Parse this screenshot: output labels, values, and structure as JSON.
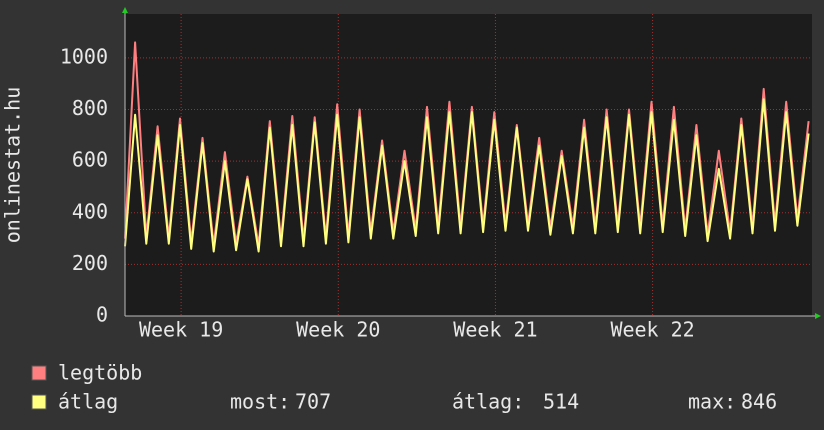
{
  "chart_data": {
    "type": "line",
    "side_label": "onlinestat.hu",
    "x": [
      0,
      0.45,
      0.95,
      1.45,
      1.95,
      2.45,
      2.95,
      3.45,
      3.95,
      4.45,
      4.95,
      5.45,
      5.95,
      6.45,
      6.95,
      7.45,
      7.95,
      8.45,
      8.95,
      9.45,
      9.95,
      10.45,
      10.95,
      11.45,
      11.95,
      12.45,
      12.95,
      13.45,
      13.95,
      14.45,
      14.95,
      15.45,
      15.95,
      16.45,
      16.95,
      17.45,
      17.95,
      18.45,
      18.95,
      19.45,
      19.95,
      20.45,
      20.95,
      21.45,
      21.95,
      22.45,
      22.95,
      23.45,
      23.95,
      24.45,
      24.95,
      25.45,
      25.95,
      26.45,
      26.95,
      27.45,
      27.95,
      28.45,
      28.95,
      29.45,
      29.95,
      30.45
    ],
    "series": [
      {
        "name": "legtöbb",
        "color": "#ff7f80",
        "values": [
          300,
          1060,
          305,
          735,
          305,
          765,
          285,
          690,
          275,
          635,
          280,
          540,
          275,
          755,
          295,
          775,
          295,
          770,
          305,
          820,
          310,
          800,
          325,
          680,
          325,
          640,
          335,
          810,
          345,
          830,
          345,
          810,
          350,
          790,
          355,
          740,
          355,
          690,
          340,
          640,
          345,
          760,
          345,
          800,
          350,
          800,
          345,
          830,
          350,
          810,
          335,
          740,
          315,
          640,
          325,
          765,
          345,
          880,
          355,
          830,
          375,
          755
        ]
      },
      {
        "name": "átlag",
        "color": "#ffff80",
        "values": [
          270,
          780,
          280,
          700,
          280,
          740,
          260,
          670,
          250,
          600,
          255,
          530,
          250,
          730,
          270,
          740,
          270,
          750,
          280,
          780,
          285,
          770,
          300,
          660,
          300,
          600,
          310,
          770,
          320,
          790,
          320,
          790,
          325,
          760,
          330,
          730,
          330,
          660,
          315,
          620,
          320,
          730,
          320,
          770,
          325,
          780,
          320,
          790,
          325,
          760,
          310,
          700,
          290,
          570,
          300,
          740,
          320,
          840,
          330,
          790,
          350,
          707
        ]
      }
    ],
    "xlim": [
      0,
      30.6
    ],
    "xticks": [
      {
        "value": 2.5,
        "label": "Week 19"
      },
      {
        "value": 9.5,
        "label": "Week 20"
      },
      {
        "value": 16.5,
        "label": "Week 21"
      },
      {
        "value": 23.5,
        "label": "Week 22"
      }
    ],
    "ylim": [
      0,
      1170
    ],
    "yticks": [
      0,
      200,
      400,
      600,
      800,
      1000
    ],
    "grid": true,
    "stats": [
      {
        "label": "most:",
        "value": 707
      },
      {
        "label": "átlag:",
        "value": 514
      },
      {
        "label": "max:",
        "value": 846
      }
    ]
  }
}
